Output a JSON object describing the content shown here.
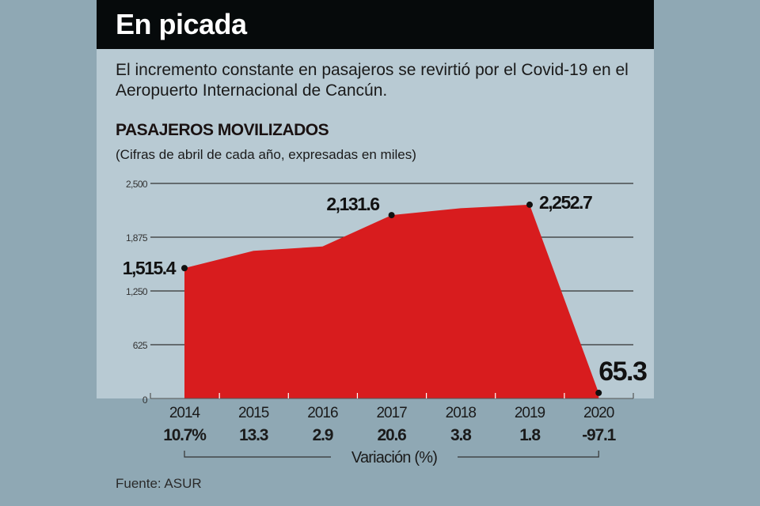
{
  "header": {
    "title": "En picada",
    "subtitle": "El incremento constante en pasajeros se revirtió por el Covid-19 en el Aeropuerto Internacional de Cancún.",
    "section_title": "PASAJEROS MOVILIZADOS",
    "note": "(Cifras de abril de cada año, expresadas en miles)"
  },
  "footer": {
    "source": "Fuente: ASUR"
  },
  "colors": {
    "fill": "#d81c1e",
    "panel": "#b8cad3",
    "band": "#8fa8b4",
    "titlebar": "#060a0b"
  },
  "chart_data": {
    "type": "area",
    "title": "PASAJEROS MOVILIZADOS",
    "categories": [
      "2014",
      "2015",
      "2016",
      "2017",
      "2018",
      "2019",
      "2020"
    ],
    "values": [
      1515.4,
      1717,
      1767,
      2131.6,
      2212,
      2252.7,
      65.3
    ],
    "data_labels": [
      {
        "category": "2014",
        "text": "1,515.4"
      },
      {
        "category": "2017",
        "text": "2,131.6"
      },
      {
        "category": "2019",
        "text": "2,252.7"
      },
      {
        "category": "2020",
        "text": "65.3"
      }
    ],
    "variation": {
      "label": "Variación (%)",
      "values": [
        "10.7%",
        "13.3",
        "2.9",
        "20.6",
        "3.8",
        "1.8",
        "-97.1"
      ]
    },
    "yticks": [
      0,
      625,
      1250,
      1875,
      2500
    ],
    "ytick_labels": [
      "0",
      "625",
      "1,250",
      "1,875",
      "2,500"
    ],
    "ylim": [
      0,
      2500
    ],
    "grid": true,
    "xlabel": "",
    "ylabel": ""
  }
}
